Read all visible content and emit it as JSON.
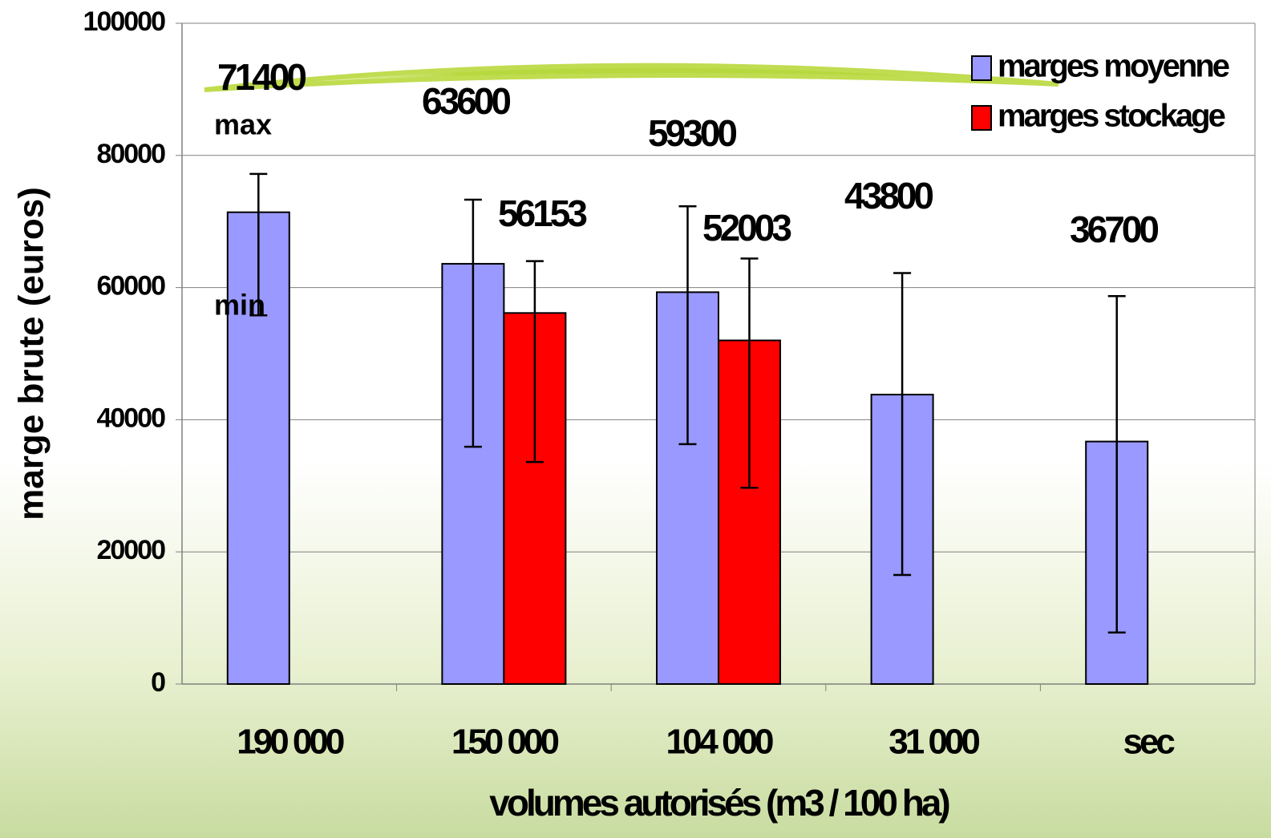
{
  "chart_data": {
    "type": "bar",
    "x_label": "volumes autorisés (m3 / 100 ha)",
    "y_label": "marge brute (euros)",
    "categories": [
      "190 000",
      "150 000",
      "104 000",
      "31 000",
      "sec"
    ],
    "series": [
      {
        "name": "marges moyenne",
        "color": "#9999ff",
        "values": [
          71400,
          63600,
          59300,
          43800,
          36700
        ],
        "low": [
          55800,
          35900,
          36300,
          16500,
          7800
        ],
        "high": [
          77200,
          73300,
          72300,
          62200,
          58700
        ]
      },
      {
        "name": "marges stockage",
        "color": "#ff0000",
        "values": [
          null,
          56153,
          52003,
          null,
          null
        ],
        "low": [
          null,
          33600,
          29700,
          null,
          null
        ],
        "high": [
          null,
          64000,
          64400,
          null,
          null
        ]
      }
    ],
    "annotations": [
      "max",
      "min"
    ],
    "ylim": [
      0,
      100000
    ],
    "yticks": [
      0,
      20000,
      40000,
      60000,
      80000,
      100000
    ],
    "grid": true,
    "legend": "top-right"
  }
}
